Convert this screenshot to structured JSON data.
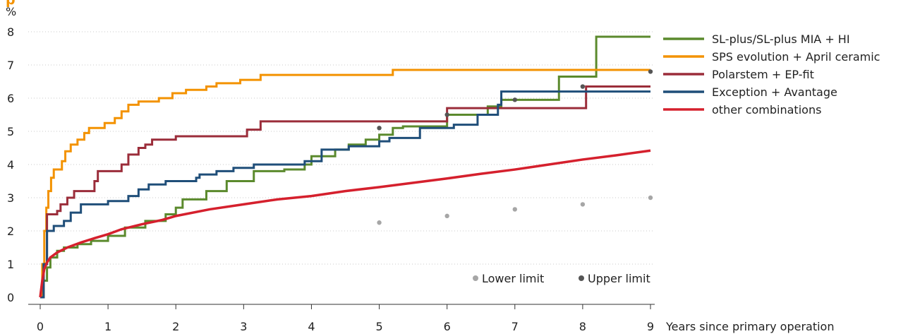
{
  "chart_data": {
    "type": "line",
    "title": "p",
    "xlabel": "Years since primary operation",
    "ylabel": "%",
    "xlim": [
      0,
      9
    ],
    "ylim": [
      0,
      8
    ],
    "x_ticks": [
      "0",
      "1",
      "2",
      "3",
      "4",
      "5",
      "6",
      "7",
      "8",
      "9"
    ],
    "y_ticks": [
      "0",
      "1",
      "2",
      "3",
      "4",
      "5",
      "6",
      "7",
      "8"
    ],
    "grid": "horizontal dotted",
    "legend_position": "top-right",
    "series": [
      {
        "name": "SL-plus/SL-plus MIA + HI",
        "color": "#5b8a2d",
        "step": true,
        "points": [
          [
            0,
            0
          ],
          [
            0.05,
            0.5
          ],
          [
            0.1,
            0.9
          ],
          [
            0.15,
            1.2
          ],
          [
            0.25,
            1.4
          ],
          [
            0.35,
            1.5
          ],
          [
            0.55,
            1.6
          ],
          [
            0.75,
            1.7
          ],
          [
            1.0,
            1.85
          ],
          [
            1.25,
            2.1
          ],
          [
            1.55,
            2.3
          ],
          [
            1.85,
            2.5
          ],
          [
            2.0,
            2.7
          ],
          [
            2.1,
            2.95
          ],
          [
            2.45,
            3.2
          ],
          [
            2.75,
            3.5
          ],
          [
            3.15,
            3.8
          ],
          [
            3.6,
            3.85
          ],
          [
            3.9,
            4.0
          ],
          [
            4.0,
            4.25
          ],
          [
            4.35,
            4.45
          ],
          [
            4.55,
            4.6
          ],
          [
            4.8,
            4.75
          ],
          [
            5.0,
            4.9
          ],
          [
            5.2,
            5.1
          ],
          [
            5.35,
            5.15
          ],
          [
            6.0,
            5.5
          ],
          [
            6.6,
            5.75
          ],
          [
            6.8,
            5.95
          ],
          [
            7.65,
            6.65
          ],
          [
            8.2,
            7.85
          ],
          [
            9.0,
            7.85
          ]
        ]
      },
      {
        "name": "SPS evolution + April ceramic",
        "color": "#f39200",
        "step": true,
        "points": [
          [
            0,
            0
          ],
          [
            0.03,
            1.0
          ],
          [
            0.06,
            2.0
          ],
          [
            0.09,
            2.7
          ],
          [
            0.12,
            3.2
          ],
          [
            0.16,
            3.6
          ],
          [
            0.2,
            3.85
          ],
          [
            0.32,
            4.1
          ],
          [
            0.37,
            4.4
          ],
          [
            0.45,
            4.6
          ],
          [
            0.55,
            4.75
          ],
          [
            0.65,
            4.95
          ],
          [
            0.72,
            5.1
          ],
          [
            0.95,
            5.25
          ],
          [
            1.1,
            5.4
          ],
          [
            1.2,
            5.6
          ],
          [
            1.3,
            5.8
          ],
          [
            1.45,
            5.9
          ],
          [
            1.75,
            6.0
          ],
          [
            1.95,
            6.15
          ],
          [
            2.15,
            6.25
          ],
          [
            2.45,
            6.35
          ],
          [
            2.6,
            6.45
          ],
          [
            2.95,
            6.55
          ],
          [
            3.25,
            6.7
          ],
          [
            5.2,
            6.85
          ],
          [
            9.0,
            6.85
          ]
        ]
      },
      {
        "name": "Polarstem + EP-fit",
        "color": "#9b2d3a",
        "step": true,
        "points": [
          [
            0,
            0
          ],
          [
            0.05,
            1.0
          ],
          [
            0.1,
            2.5
          ],
          [
            0.25,
            2.6
          ],
          [
            0.3,
            2.8
          ],
          [
            0.4,
            3.0
          ],
          [
            0.5,
            3.2
          ],
          [
            0.8,
            3.5
          ],
          [
            0.85,
            3.8
          ],
          [
            1.2,
            4.0
          ],
          [
            1.3,
            4.3
          ],
          [
            1.45,
            4.5
          ],
          [
            1.55,
            4.6
          ],
          [
            1.65,
            4.75
          ],
          [
            2.0,
            4.85
          ],
          [
            3.05,
            5.05
          ],
          [
            3.25,
            5.3
          ],
          [
            6.0,
            5.7
          ],
          [
            8.05,
            6.35
          ],
          [
            9.0,
            6.35
          ]
        ]
      },
      {
        "name": "Exception + Avantage",
        "color": "#1f4e79",
        "step": true,
        "points": [
          [
            0,
            0
          ],
          [
            0.05,
            1.0
          ],
          [
            0.1,
            2.0
          ],
          [
            0.2,
            2.15
          ],
          [
            0.35,
            2.3
          ],
          [
            0.45,
            2.55
          ],
          [
            0.6,
            2.8
          ],
          [
            1.0,
            2.9
          ],
          [
            1.3,
            3.05
          ],
          [
            1.45,
            3.25
          ],
          [
            1.6,
            3.4
          ],
          [
            1.85,
            3.5
          ],
          [
            2.3,
            3.6
          ],
          [
            2.35,
            3.7
          ],
          [
            2.6,
            3.8
          ],
          [
            2.85,
            3.9
          ],
          [
            3.15,
            4.0
          ],
          [
            3.9,
            4.1
          ],
          [
            4.15,
            4.3
          ],
          [
            4.15,
            4.45
          ],
          [
            4.55,
            4.55
          ],
          [
            5.0,
            4.7
          ],
          [
            5.15,
            4.8
          ],
          [
            5.6,
            5.1
          ],
          [
            6.1,
            5.2
          ],
          [
            6.45,
            5.5
          ],
          [
            6.75,
            5.8
          ],
          [
            6.8,
            6.2
          ],
          [
            9.0,
            6.2
          ]
        ]
      },
      {
        "name": "other combinations",
        "color": "#d5202d",
        "step": false,
        "points": [
          [
            0,
            0
          ],
          [
            0.03,
            0.5
          ],
          [
            0.06,
            0.85
          ],
          [
            0.1,
            1.05
          ],
          [
            0.15,
            1.2
          ],
          [
            0.25,
            1.35
          ],
          [
            0.4,
            1.5
          ],
          [
            0.6,
            1.65
          ],
          [
            0.8,
            1.78
          ],
          [
            1.0,
            1.9
          ],
          [
            1.2,
            2.05
          ],
          [
            1.5,
            2.2
          ],
          [
            1.8,
            2.33
          ],
          [
            2.0,
            2.45
          ],
          [
            2.5,
            2.65
          ],
          [
            3.0,
            2.8
          ],
          [
            3.5,
            2.95
          ],
          [
            4.0,
            3.05
          ],
          [
            4.5,
            3.2
          ],
          [
            5.0,
            3.32
          ],
          [
            5.5,
            3.45
          ],
          [
            6.0,
            3.58
          ],
          [
            6.5,
            3.72
          ],
          [
            7.0,
            3.85
          ],
          [
            7.5,
            4.0
          ],
          [
            8.0,
            4.15
          ],
          [
            8.5,
            4.28
          ],
          [
            9.0,
            4.42
          ]
        ]
      }
    ],
    "markers": [
      {
        "name": "Lower limit",
        "color": "#a6a6a6",
        "points": [
          [
            5,
            2.25
          ],
          [
            6,
            2.45
          ],
          [
            7,
            2.65
          ],
          [
            8,
            2.8
          ],
          [
            9,
            3.0
          ]
        ]
      },
      {
        "name": "Upper limit",
        "color": "#555555",
        "points": [
          [
            5,
            5.1
          ],
          [
            6,
            5.5
          ],
          [
            7,
            5.95
          ],
          [
            8,
            6.35
          ],
          [
            9,
            6.8
          ]
        ]
      }
    ]
  }
}
